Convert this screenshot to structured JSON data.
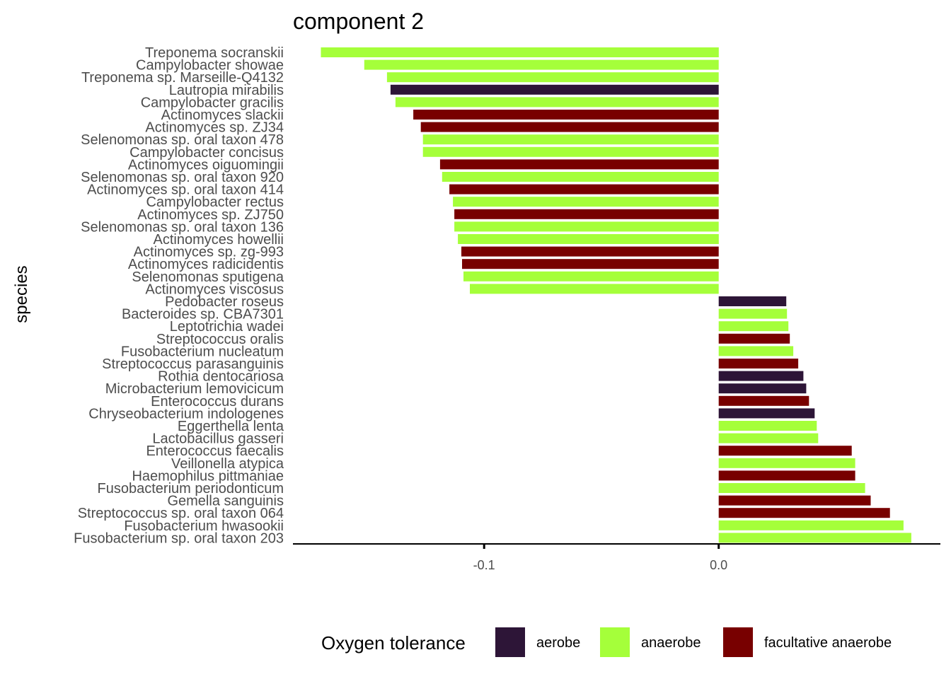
{
  "chart_data": {
    "type": "bar",
    "orientation": "horizontal",
    "title": "component 2",
    "ylabel": "species",
    "xlabel": "",
    "xlim": [
      -0.1815,
      0.0945
    ],
    "xticks": [
      {
        "value": -0.1,
        "label": "-0.1"
      },
      {
        "value": 0.0,
        "label": "0.0"
      }
    ],
    "grid": false,
    "legend": {
      "title": "Oxygen tolerance",
      "position": "bottom",
      "items": [
        {
          "key": "aerobe",
          "label": "aerobe",
          "color": "#2d1537"
        },
        {
          "key": "anaerobe",
          "label": "anaerobe",
          "color": "#a5ff3a"
        },
        {
          "key": "facultative anaerobe",
          "label": "facultative anaerobe",
          "color": "#780000"
        }
      ]
    },
    "bars": [
      {
        "species": "Treponema socranskii",
        "value": -0.1696,
        "group": "anaerobe"
      },
      {
        "species": "Campylobacter showae",
        "value": -0.1511,
        "group": "anaerobe"
      },
      {
        "species": "Treponema sp. Marseille-Q4132",
        "value": -0.1414,
        "group": "anaerobe"
      },
      {
        "species": "Lautropia mirabilis",
        "value": -0.1399,
        "group": "aerobe"
      },
      {
        "species": "Campylobacter gracilis",
        "value": -0.1378,
        "group": "anaerobe"
      },
      {
        "species": "Actinomyces slackii",
        "value": -0.1302,
        "group": "facultative anaerobe"
      },
      {
        "species": "Actinomyces sp. ZJ34",
        "value": -0.127,
        "group": "facultative anaerobe"
      },
      {
        "species": "Selenomonas sp. oral taxon 478",
        "value": -0.1261,
        "group": "anaerobe"
      },
      {
        "species": "Campylobacter concisus",
        "value": -0.1261,
        "group": "anaerobe"
      },
      {
        "species": "Actinomyces oiguomingii",
        "value": -0.1188,
        "group": "facultative anaerobe"
      },
      {
        "species": "Selenomonas sp. oral taxon 920",
        "value": -0.1179,
        "group": "anaerobe"
      },
      {
        "species": "Actinomyces sp. oral taxon 414",
        "value": -0.1148,
        "group": "facultative anaerobe"
      },
      {
        "species": "Campylobacter rectus",
        "value": -0.1133,
        "group": "anaerobe"
      },
      {
        "species": "Actinomyces sp. ZJ750",
        "value": -0.1127,
        "group": "facultative anaerobe"
      },
      {
        "species": "Selenomonas sp. oral taxon 136",
        "value": -0.1127,
        "group": "anaerobe"
      },
      {
        "species": "Actinomyces howellii",
        "value": -0.1112,
        "group": "anaerobe"
      },
      {
        "species": "Actinomyces sp. zg-993",
        "value": -0.1097,
        "group": "facultative anaerobe"
      },
      {
        "species": "Actinomyces radicidentis",
        "value": -0.1094,
        "group": "facultative anaerobe"
      },
      {
        "species": "Selenomonas sputigena",
        "value": -0.1088,
        "group": "anaerobe"
      },
      {
        "species": "Actinomyces viscosus",
        "value": -0.1061,
        "group": "anaerobe"
      },
      {
        "species": "Pedobacter roseus",
        "value": 0.0288,
        "group": "aerobe"
      },
      {
        "species": "Bacteroides sp. CBA7301",
        "value": 0.0291,
        "group": "anaerobe"
      },
      {
        "species": "Leptotrichia wadei",
        "value": 0.0297,
        "group": "anaerobe"
      },
      {
        "species": "Streptococcus oralis",
        "value": 0.0303,
        "group": "facultative anaerobe"
      },
      {
        "species": "Fusobacterium nucleatum",
        "value": 0.0318,
        "group": "anaerobe"
      },
      {
        "species": "Streptococcus parasanguinis",
        "value": 0.0339,
        "group": "facultative anaerobe"
      },
      {
        "species": "Rothia dentocariosa",
        "value": 0.0361,
        "group": "aerobe"
      },
      {
        "species": "Microbacterium lemovicicum",
        "value": 0.0373,
        "group": "aerobe"
      },
      {
        "species": "Enterococcus durans",
        "value": 0.0385,
        "group": "facultative anaerobe"
      },
      {
        "species": "Chryseobacterium indologenes",
        "value": 0.0409,
        "group": "aerobe"
      },
      {
        "species": "Eggerthella lenta",
        "value": 0.0418,
        "group": "anaerobe"
      },
      {
        "species": "Lactobacillus gasseri",
        "value": 0.0424,
        "group": "anaerobe"
      },
      {
        "species": "Enterococcus faecalis",
        "value": 0.0567,
        "group": "facultative anaerobe"
      },
      {
        "species": "Veillonella atypica",
        "value": 0.0582,
        "group": "anaerobe"
      },
      {
        "species": "Haemophilus pittmaniae",
        "value": 0.0582,
        "group": "facultative anaerobe"
      },
      {
        "species": "Fusobacterium periodonticum",
        "value": 0.0624,
        "group": "anaerobe"
      },
      {
        "species": "Gemella sanguinis",
        "value": 0.0648,
        "group": "facultative anaerobe"
      },
      {
        "species": "Streptococcus sp. oral taxon 064",
        "value": 0.073,
        "group": "facultative anaerobe"
      },
      {
        "species": "Fusobacterium hwasookii",
        "value": 0.0788,
        "group": "anaerobe"
      },
      {
        "species": "Fusobacterium sp. oral taxon 203",
        "value": 0.0821,
        "group": "anaerobe"
      }
    ]
  }
}
